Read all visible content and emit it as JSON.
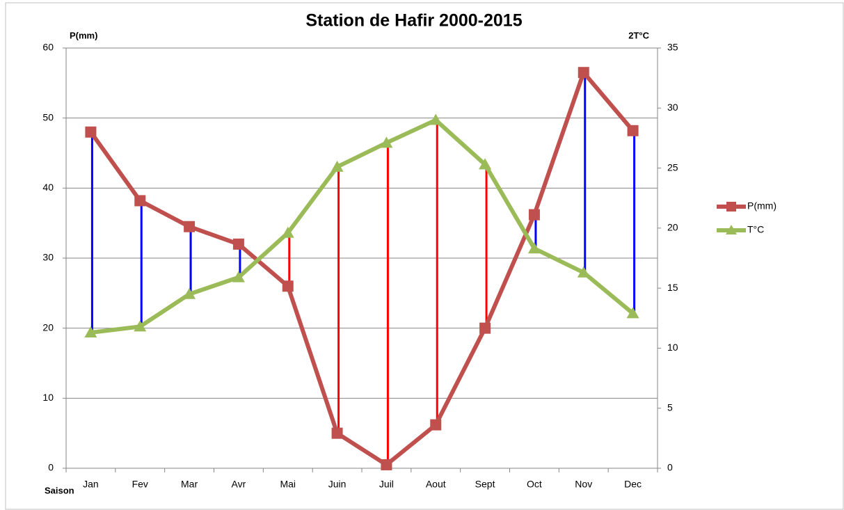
{
  "chart_data": {
    "type": "line",
    "title": "Station de Hafir 2000-2015",
    "y_label": "P(mm)",
    "y2_label": "2T°C",
    "x_label": "Saison",
    "categories": [
      "Jan",
      "Fev",
      "Mar",
      "Avr",
      "Mai",
      "Juin",
      "Juil",
      "Aout",
      "Sept",
      "Oct",
      "Nov",
      "Dec"
    ],
    "series": [
      {
        "name": "P(mm)",
        "color": "#c0504d",
        "marker": "square",
        "axis": "y",
        "values": [
          48,
          38.2,
          34.5,
          32,
          26,
          5,
          0.5,
          6.2,
          20,
          36.2,
          56.5,
          48.2
        ]
      },
      {
        "name": "T°C",
        "color": "#9bbb59",
        "marker": "triangle",
        "axis": "y2",
        "values": [
          11.3,
          11.8,
          14.5,
          15.9,
          19.6,
          25.1,
          27.1,
          29,
          25.3,
          18.3,
          16.3,
          12.9
        ]
      }
    ],
    "wet_color": "#0000ff",
    "dry_color": "#ff0000",
    "ylim": [
      0,
      60
    ],
    "yticks": [
      0,
      10,
      20,
      30,
      40,
      50,
      60
    ],
    "y2lim": [
      0,
      35
    ],
    "y2ticks": [
      0,
      5,
      10,
      15,
      20,
      25,
      30,
      35
    ],
    "grid": true,
    "legend": "right"
  }
}
